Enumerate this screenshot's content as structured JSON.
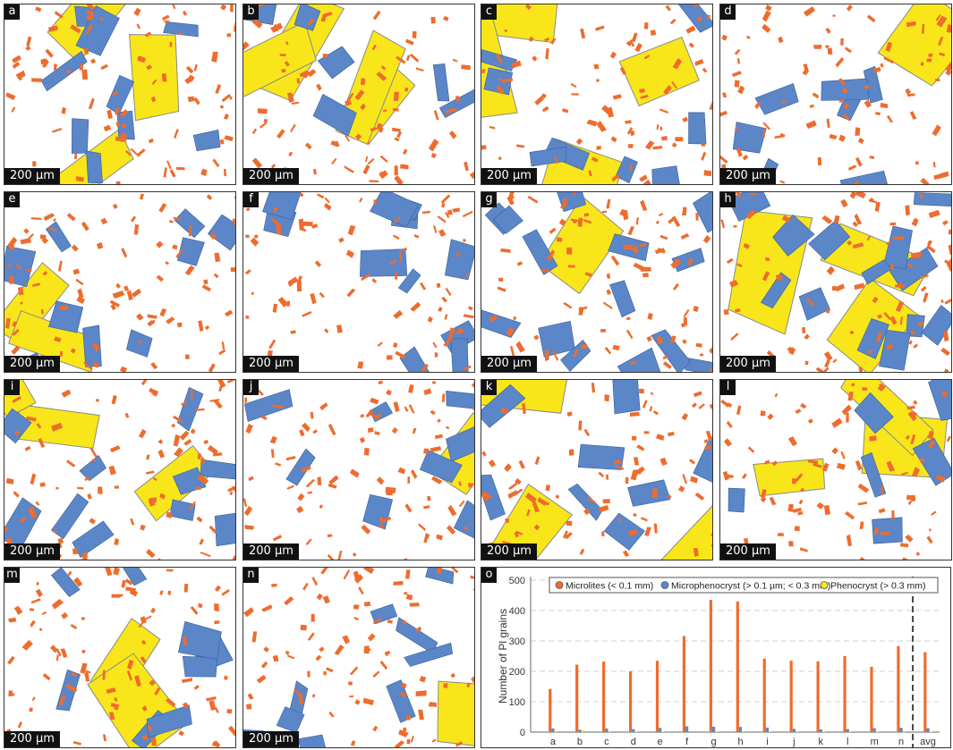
{
  "scale_bar": "200 µm",
  "colors": {
    "microlite": "#ee6c2e",
    "microphenocryst": "#5b86c8",
    "phenocryst": "#f8e61a",
    "outline": "#8a8a8a"
  },
  "panels": [
    {
      "label": "a",
      "seed": 11,
      "blue": 9,
      "yellow": 3
    },
    {
      "label": "b",
      "seed": 23,
      "blue": 6,
      "yellow": 4
    },
    {
      "label": "c",
      "seed": 37,
      "blue": 8,
      "yellow": 4
    },
    {
      "label": "d",
      "seed": 41,
      "blue": 7,
      "yellow": 1
    },
    {
      "label": "e",
      "seed": 53,
      "blue": 9,
      "yellow": 2
    },
    {
      "label": "f",
      "seed": 67,
      "blue": 11,
      "yellow": 0
    },
    {
      "label": "g",
      "seed": 71,
      "blue": 14,
      "yellow": 1
    },
    {
      "label": "h",
      "seed": 83,
      "blue": 13,
      "yellow": 3
    },
    {
      "label": "i",
      "seed": 97,
      "blue": 10,
      "yellow": 3
    },
    {
      "label": "j",
      "seed": 101,
      "blue": 8,
      "yellow": 1
    },
    {
      "label": "k",
      "seed": 113,
      "blue": 8,
      "yellow": 3
    },
    {
      "label": "l",
      "seed": 127,
      "blue": 6,
      "yellow": 3
    },
    {
      "label": "m",
      "seed": 131,
      "blue": 8,
      "yellow": 2
    },
    {
      "label": "n",
      "seed": 139,
      "blue": 9,
      "yellow": 1
    }
  ],
  "chart_panel_label": "o",
  "chart_data": {
    "type": "bar",
    "categories": [
      "a",
      "b",
      "c",
      "d",
      "e",
      "f",
      "g",
      "h",
      "i",
      "j",
      "k",
      "l",
      "m",
      "n",
      "avg"
    ],
    "series": [
      {
        "name": "Microlites (< 0.1 mm)",
        "color": "#ee6c2e",
        "values": [
          142,
          222,
          232,
          200,
          235,
          316,
          435,
          430,
          242,
          235,
          233,
          250,
          215,
          283,
          263
        ]
      },
      {
        "name": "Microphenocryst (> 0.1 µm; < 0.3 mm)",
        "color": "#5b86c8",
        "values": [
          12,
          8,
          12,
          10,
          14,
          19,
          18,
          17,
          15,
          11,
          9,
          10,
          13,
          14,
          13
        ]
      },
      {
        "name": "Phenocryst (> 0.3 mm)",
        "color": "#f8e61a",
        "values": [
          4,
          6,
          4,
          1,
          2,
          0,
          1,
          3,
          3,
          1,
          3,
          3,
          2,
          1,
          2
        ]
      }
    ],
    "ylabel": "Number of Pl grains",
    "xlabel": "",
    "ylim": [
      0,
      500
    ],
    "yticks": [
      0,
      100,
      200,
      300,
      400,
      500
    ],
    "grid": true,
    "legend_position": "top",
    "separator_before": "avg"
  }
}
